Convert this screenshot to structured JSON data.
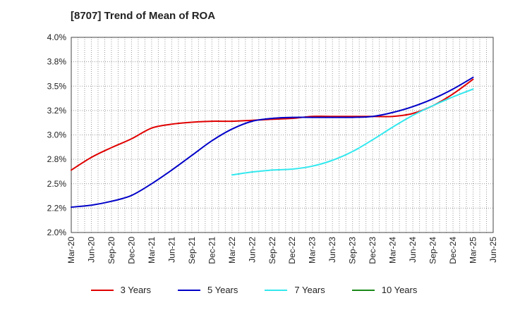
{
  "chart_data": {
    "type": "line",
    "title": "[8707]  Trend of Mean of ROA",
    "xlabel": "",
    "ylabel": "",
    "categories": [
      "Mar-20",
      "Jun-20",
      "Sep-20",
      "Dec-20",
      "Mar-21",
      "Jun-21",
      "Sep-21",
      "Dec-21",
      "Mar-22",
      "Jun-22",
      "Sep-22",
      "Dec-22",
      "Mar-23",
      "Jun-23",
      "Sep-23",
      "Dec-23",
      "Mar-24",
      "Jun-24",
      "Sep-24",
      "Dec-24",
      "Mar-25",
      "Jun-25"
    ],
    "ylim": [
      2.0,
      4.0
    ],
    "yticks": [
      2.0,
      2.25,
      2.5,
      2.75,
      3.0,
      3.25,
      3.5,
      3.75,
      4.0
    ],
    "ytick_labels": [
      "2.0%",
      "2.2%",
      "2.5%",
      "2.8%",
      "3.0%",
      "3.2%",
      "3.5%",
      "3.8%",
      "4.0%"
    ],
    "grid": true,
    "legend_position": "bottom",
    "series": [
      {
        "name": "3 Years",
        "color": "#e00000",
        "values": [
          2.64,
          2.77,
          2.87,
          2.96,
          3.07,
          3.11,
          3.13,
          3.14,
          3.14,
          3.15,
          3.16,
          3.17,
          3.19,
          3.19,
          3.19,
          3.19,
          3.19,
          3.22,
          3.3,
          3.42,
          3.57,
          null
        ]
      },
      {
        "name": "5 Years",
        "color": "#0000c8",
        "values": [
          2.26,
          2.28,
          2.32,
          2.38,
          2.5,
          2.64,
          2.79,
          2.94,
          3.06,
          3.14,
          3.17,
          3.18,
          3.18,
          3.18,
          3.18,
          3.19,
          3.23,
          3.29,
          3.37,
          3.47,
          3.59,
          null
        ]
      },
      {
        "name": "7 Years",
        "color": "#33e8ee",
        "values": [
          null,
          null,
          null,
          null,
          null,
          null,
          null,
          null,
          2.59,
          2.62,
          2.64,
          2.65,
          2.68,
          2.74,
          2.83,
          2.95,
          3.08,
          3.2,
          3.3,
          3.39,
          3.47,
          null
        ]
      },
      {
        "name": "10 Years",
        "color": "#1a8a1a",
        "values": [
          null,
          null,
          null,
          null,
          null,
          null,
          null,
          null,
          null,
          null,
          null,
          null,
          null,
          null,
          null,
          null,
          null,
          null,
          null,
          null,
          null,
          null
        ]
      }
    ]
  }
}
